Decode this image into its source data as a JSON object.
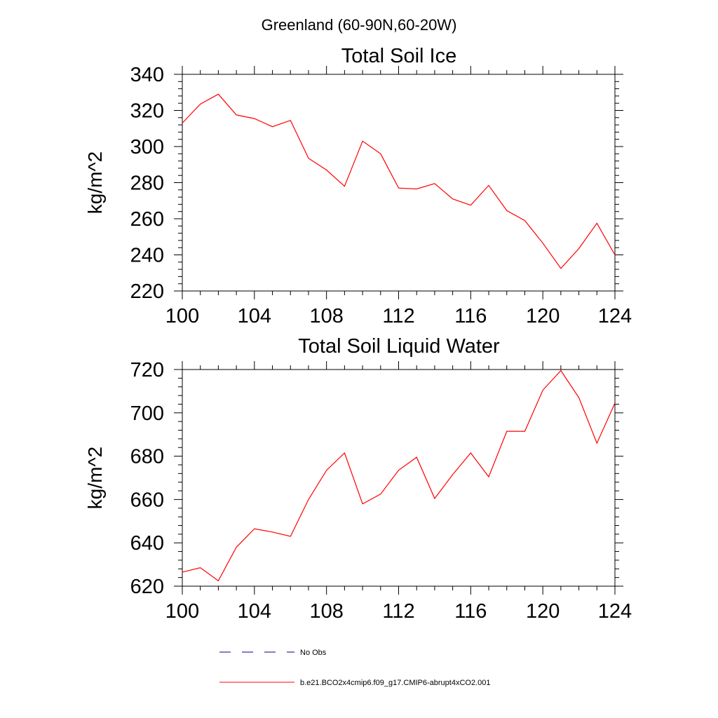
{
  "figure": {
    "suptitle": "Greenland (60-90N,60-20W)"
  },
  "colors": {
    "model_line": "#ff0000",
    "obs_line": "#00008b",
    "axes": "#000000"
  },
  "legend": {
    "placement": "bottom",
    "entries": [
      {
        "label": "No Obs",
        "style": "dashed",
        "color": "#00008b"
      },
      {
        "label": "b.e21.BCO2x4cmip6.f09_g17.CMIP6-abrupt4xCO2.001",
        "style": "solid",
        "color": "#ff0000"
      }
    ]
  },
  "chart_data": [
    {
      "type": "line",
      "title": "Total Soil Ice",
      "xlabel": "",
      "ylabel": "kg/m^2",
      "xlim": [
        100,
        124
      ],
      "ylim": [
        220,
        340
      ],
      "xticks": [
        100,
        104,
        108,
        112,
        116,
        120,
        124
      ],
      "yticks": [
        220,
        240,
        260,
        280,
        300,
        320,
        340
      ],
      "grid": false,
      "x": [
        100,
        101,
        102,
        103,
        104,
        105,
        106,
        107,
        108,
        109,
        110,
        111,
        112,
        113,
        114,
        115,
        116,
        117,
        118,
        119,
        120,
        121,
        122,
        123,
        124
      ],
      "series": [
        {
          "name": "b.e21.BCO2x4cmip6.f09_g17.CMIP6-abrupt4xCO2.001",
          "values": [
            313,
            323.5,
            329,
            317.5,
            315.5,
            311,
            314.5,
            293.5,
            287,
            278,
            303,
            296,
            277,
            276.5,
            279.5,
            271,
            267.5,
            278.5,
            264.5,
            259,
            246.5,
            232.5,
            243.5,
            257.5,
            240
          ]
        }
      ]
    },
    {
      "type": "line",
      "title": "Total Soil Liquid Water",
      "xlabel": "",
      "ylabel": "kg/m^2",
      "xlim": [
        100,
        124
      ],
      "ylim": [
        620,
        720
      ],
      "xticks": [
        100,
        104,
        108,
        112,
        116,
        120,
        124
      ],
      "yticks": [
        620,
        640,
        660,
        680,
        700,
        720
      ],
      "grid": false,
      "x": [
        100,
        101,
        102,
        103,
        104,
        105,
        106,
        107,
        108,
        109,
        110,
        111,
        112,
        113,
        114,
        115,
        116,
        117,
        118,
        119,
        120,
        121,
        122,
        123,
        124
      ],
      "series": [
        {
          "name": "b.e21.BCO2x4cmip6.f09_g17.CMIP6-abrupt4xCO2.001",
          "values": [
            626.5,
            628.5,
            622.5,
            638,
            646.5,
            645,
            643,
            660,
            673.5,
            681.5,
            658,
            662.5,
            673.5,
            679.5,
            660.5,
            671.5,
            681.5,
            670.5,
            691.5,
            691.5,
            710.5,
            719.5,
            707,
            686,
            704.5
          ]
        }
      ]
    }
  ]
}
